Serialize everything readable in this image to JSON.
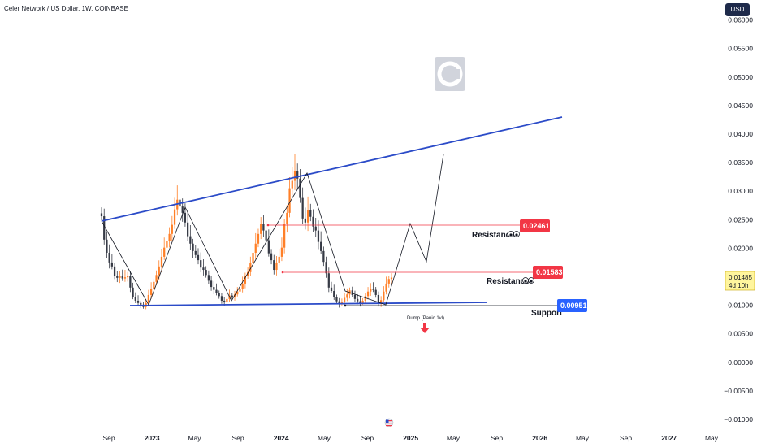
{
  "header": {
    "title": "Celer Network / US Dollar, 1W, COINBASE",
    "currency_button": "USD"
  },
  "chart_data": {
    "type": "candlestick",
    "ylim": [
      -0.012,
      0.0635
    ],
    "y_ticks": [
      "0.06000",
      "0.05500",
      "0.05000",
      "0.04500",
      "0.04000",
      "0.03500",
      "0.03000",
      "0.02500",
      "0.02000",
      "0.01500",
      "0.01000",
      "0.00500",
      "0.00000",
      "−0.00500",
      "−0.01000"
    ],
    "y_tick_values": [
      0.06,
      0.055,
      0.05,
      0.045,
      0.04,
      0.035,
      0.03,
      0.025,
      0.02,
      0.015,
      0.01,
      0.005,
      0.0,
      -0.005,
      -0.01
    ],
    "x_ticks": [
      "Sep",
      "2023",
      "May",
      "Sep",
      "2024",
      "May",
      "Sep",
      "2025",
      "May",
      "Sep",
      "2026",
      "May",
      "Sep",
      "2027",
      "May"
    ],
    "x_tick_dates": [
      "2022-09-01",
      "2023-01-01",
      "2023-05-01",
      "2023-09-01",
      "2024-01-01",
      "2024-05-01",
      "2024-09-01",
      "2025-01-01",
      "2025-05-01",
      "2025-09-01",
      "2026-01-01",
      "2026-05-01",
      "2026-09-01",
      "2027-01-01",
      "2027-05-01"
    ],
    "candle_closes": [
      0.0256,
      0.0215,
      0.0192,
      0.0175,
      0.0168,
      0.0152,
      0.0148,
      0.0151,
      0.0147,
      0.0149,
      0.0152,
      0.0131,
      0.0114,
      0.0108,
      0.0104,
      0.0101,
      0.0097,
      0.0104,
      0.0118,
      0.0129,
      0.0141,
      0.0153,
      0.0168,
      0.0185,
      0.0201,
      0.0212,
      0.0225,
      0.0241,
      0.0268,
      0.0285,
      0.0273,
      0.0262,
      0.0245,
      0.0221,
      0.0208,
      0.0195,
      0.0188,
      0.0179,
      0.0166,
      0.0162,
      0.0153,
      0.0143,
      0.0132,
      0.0127,
      0.0121,
      0.0116,
      0.0108,
      0.0105,
      0.0111,
      0.0117,
      0.0115,
      0.0119,
      0.0124,
      0.0129,
      0.0138,
      0.0151,
      0.0158,
      0.0174,
      0.0192,
      0.0208,
      0.0225,
      0.0242,
      0.0231,
      0.0214,
      0.0191,
      0.0179,
      0.0162,
      0.0175,
      0.0185,
      0.0201,
      0.0242,
      0.0262,
      0.0305,
      0.0318,
      0.0335,
      0.0322,
      0.0288,
      0.0252,
      0.0245,
      0.0267,
      0.0255,
      0.0238,
      0.0231,
      0.0211,
      0.0195,
      0.0176,
      0.0156,
      0.0131,
      0.0125,
      0.0114,
      0.0107,
      0.0102,
      0.0105,
      0.0113,
      0.0119,
      0.0126,
      0.0118,
      0.0111,
      0.0107,
      0.0104,
      0.0108,
      0.0116,
      0.0124,
      0.0129,
      0.0127,
      0.0118,
      0.0103,
      0.0109,
      0.0124,
      0.0138,
      0.0146,
      0.01485
    ],
    "current_price": "0.01485",
    "countdown": "4d 10h",
    "levels": [
      {
        "label": "Resistance",
        "value": "0.02461",
        "color": "#f23645"
      },
      {
        "label": "Resistance",
        "value": "0.01583",
        "color": "#f23645"
      },
      {
        "label": "Support",
        "value": "0.00951",
        "color": "#2962ff"
      }
    ],
    "annotations": {
      "dump": "Dump (Panic 1vl)"
    }
  },
  "colors": {
    "up": "#ff7f27",
    "down": "#363a45",
    "trendline": "#2b4bc8",
    "resistance": "#f23645",
    "support": "#2962ff",
    "current_price_bg": "#fff59d"
  },
  "icons": {
    "watermark": "celer-logo-icon",
    "flag": "us-flag-icon",
    "emoji": "eyes-icon"
  }
}
